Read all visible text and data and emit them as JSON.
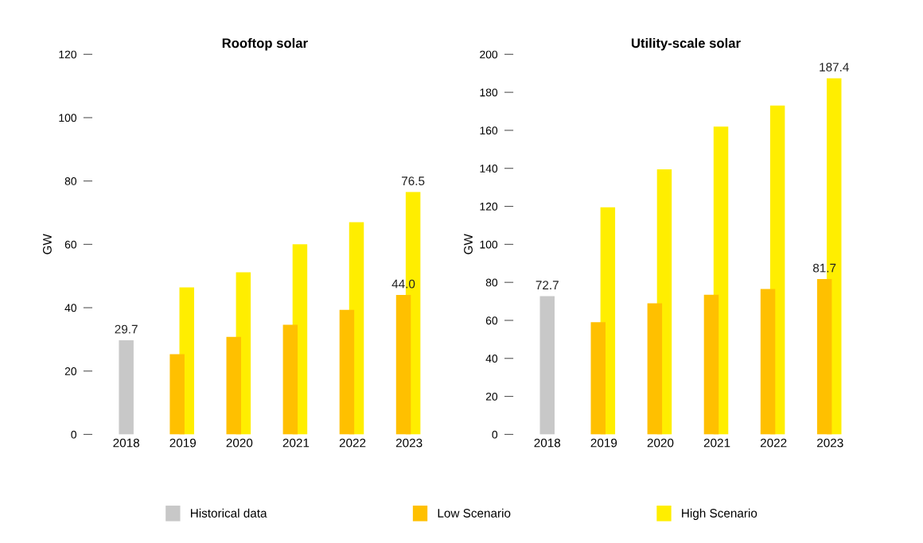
{
  "chart_data": [
    {
      "type": "bar",
      "title": "Rooftop solar",
      "ylabel": "GW",
      "categories": [
        "2018",
        "2019",
        "2020",
        "2021",
        "2022",
        "2023"
      ],
      "ylim": [
        0,
        120
      ],
      "yticks": [
        0,
        20,
        40,
        60,
        80,
        100,
        120
      ],
      "grid": false,
      "legend": "bottom",
      "series": [
        {
          "name": "Historical data",
          "color": "#c8c8c8",
          "values": [
            29.7,
            null,
            null,
            null,
            null,
            null
          ],
          "value_labels": [
            "29.7",
            null,
            null,
            null,
            null,
            null
          ]
        },
        {
          "name": "High Scenario",
          "color": "#ffee00",
          "values": [
            null,
            46.4,
            51.2,
            60.0,
            67.0,
            76.5
          ],
          "value_labels": [
            null,
            null,
            null,
            null,
            null,
            "76.5"
          ]
        },
        {
          "name": "Low Scenario",
          "color": "#ffc000",
          "values": [
            null,
            25.3,
            30.8,
            34.6,
            39.3,
            44.0
          ],
          "value_labels": [
            null,
            null,
            null,
            null,
            null,
            "44.0"
          ]
        }
      ]
    },
    {
      "type": "bar",
      "title": "Utility-scale solar",
      "ylabel": "GW",
      "categories": [
        "2018",
        "2019",
        "2020",
        "2021",
        "2022",
        "2023"
      ],
      "ylim": [
        0,
        200
      ],
      "yticks": [
        0,
        20,
        40,
        60,
        80,
        100,
        120,
        140,
        160,
        180,
        200
      ],
      "grid": false,
      "series": [
        {
          "color": "#c8c8c8",
          "values": [
            72.7,
            null,
            null,
            null,
            null,
            null
          ],
          "value_labels": [
            "72.7",
            null,
            null,
            null,
            null,
            null
          ]
        },
        {
          "color": "#ffee00",
          "values": [
            null,
            119.5,
            139.5,
            162,
            173,
            187.4
          ],
          "value_labels": [
            null,
            null,
            null,
            null,
            null,
            "187.4"
          ]
        },
        {
          "color": "#ffc000",
          "values": [
            null,
            59,
            69,
            73.5,
            76.5,
            81.7
          ],
          "value_labels": [
            null,
            null,
            null,
            null,
            null,
            "81.7"
          ]
        }
      ]
    }
  ]
}
